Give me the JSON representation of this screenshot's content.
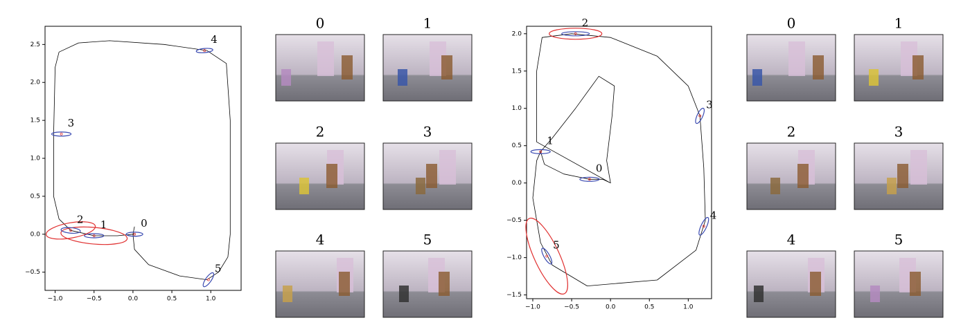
{
  "chart_data": [
    {
      "type": "line",
      "x": [
        0.02,
        0.0,
        -0.2,
        -0.5,
        -0.8,
        -0.95,
        -1.02,
        -1.02,
        -1.0,
        -0.95,
        -0.7,
        -0.3,
        0.4,
        0.95,
        1.2,
        1.25,
        1.25,
        1.22,
        1.1,
        0.95,
        0.6,
        0.2,
        0.02,
        0.0,
        0.02
      ],
      "y": [
        0.0,
        0.0,
        -0.02,
        -0.02,
        0.05,
        0.2,
        0.5,
        1.32,
        2.2,
        2.4,
        2.52,
        2.55,
        2.5,
        2.42,
        2.25,
        1.5,
        0.0,
        -0.3,
        -0.5,
        -0.6,
        -0.55,
        -0.4,
        -0.2,
        0.0,
        0.1
      ],
      "xlim": [
        -1.13,
        1.39
      ],
      "ylim": [
        -0.74,
        2.74
      ],
      "xticks": [
        {
          "value": -1.0,
          "label": "−1.0"
        },
        {
          "value": -0.5,
          "label": "−0.5"
        },
        {
          "value": 0.0,
          "label": "0.0"
        },
        0.5,
        {
          "value": 1.0,
          "label": "1.0"
        }
      ],
      "yticks": [
        {
          "value": -0.5,
          "label": "−0.5"
        },
        {
          "value": 0.0,
          "label": "0.0"
        },
        0.5,
        {
          "value": 1.0,
          "label": "1.0"
        },
        1.5,
        {
          "value": 2.0,
          "label": "2.0"
        },
        2.5
      ],
      "points": {
        "labels": [
          "0",
          "1",
          "2",
          "3",
          "4",
          "5"
        ],
        "x": [
          0.02,
          -0.5,
          -0.8,
          -0.92,
          0.92,
          0.97
        ],
        "y": [
          0.0,
          -0.02,
          0.05,
          1.32,
          2.42,
          -0.6
        ]
      },
      "color": "#000000"
    },
    {
      "type": "line",
      "x": [
        0.0,
        -0.05,
        0.02,
        0.05,
        -0.15,
        -0.45,
        -0.75,
        -0.9,
        -0.85,
        -0.6,
        -0.27,
        -0.1,
        0.0,
        -0.95,
        -0.95,
        -0.88,
        -0.5,
        0.0,
        0.6,
        1.0,
        1.15,
        1.2,
        1.22,
        1.1,
        0.6,
        -0.3,
        -0.75,
        -0.9,
        -1.0,
        -0.95,
        -0.9
      ],
      "y": [
        0.0,
        0.3,
        0.9,
        1.3,
        1.43,
        1.0,
        0.6,
        0.42,
        0.25,
        0.12,
        0.05,
        0.05,
        0.0,
        0.55,
        1.5,
        1.95,
        2.0,
        1.95,
        1.7,
        1.3,
        0.9,
        0.2,
        -0.5,
        -0.9,
        -1.3,
        -1.38,
        -1.1,
        -0.8,
        -0.2,
        0.3,
        0.42
      ],
      "xlim": [
        -1.08,
        1.3
      ],
      "ylim": [
        -1.55,
        2.1
      ],
      "xticks": [
        {
          "value": -1.0,
          "label": "−1.0"
        },
        {
          "value": -0.5,
          "label": "−0.5"
        },
        {
          "value": 0.0,
          "label": "0.0"
        },
        0.5,
        {
          "value": 1.0,
          "label": "1.0"
        }
      ],
      "yticks": [
        {
          "value": -1.5,
          "label": "−1.5"
        },
        {
          "value": -1.0,
          "label": "−1.0"
        },
        {
          "value": -0.5,
          "label": "−0.5"
        },
        {
          "value": 0.0,
          "label": "0.0"
        },
        0.5,
        {
          "value": 1.0,
          "label": "1.0"
        },
        1.5,
        {
          "value": 2.0,
          "label": "2.0"
        }
      ],
      "points": {
        "labels": [
          "0",
          "1",
          "2",
          "3",
          "4",
          "5"
        ],
        "x": [
          -0.27,
          -0.9,
          -0.45,
          1.15,
          1.2,
          -0.82
        ],
        "y": [
          0.05,
          0.42,
          2.0,
          0.9,
          -0.58,
          -0.98
        ]
      },
      "color": "#000000"
    }
  ],
  "image_grids": [
    {
      "labels": [
        "0",
        "1",
        "2",
        "3",
        "4",
        "5"
      ]
    },
    {
      "labels": [
        "0",
        "1",
        "2",
        "3",
        "4",
        "5"
      ]
    }
  ]
}
